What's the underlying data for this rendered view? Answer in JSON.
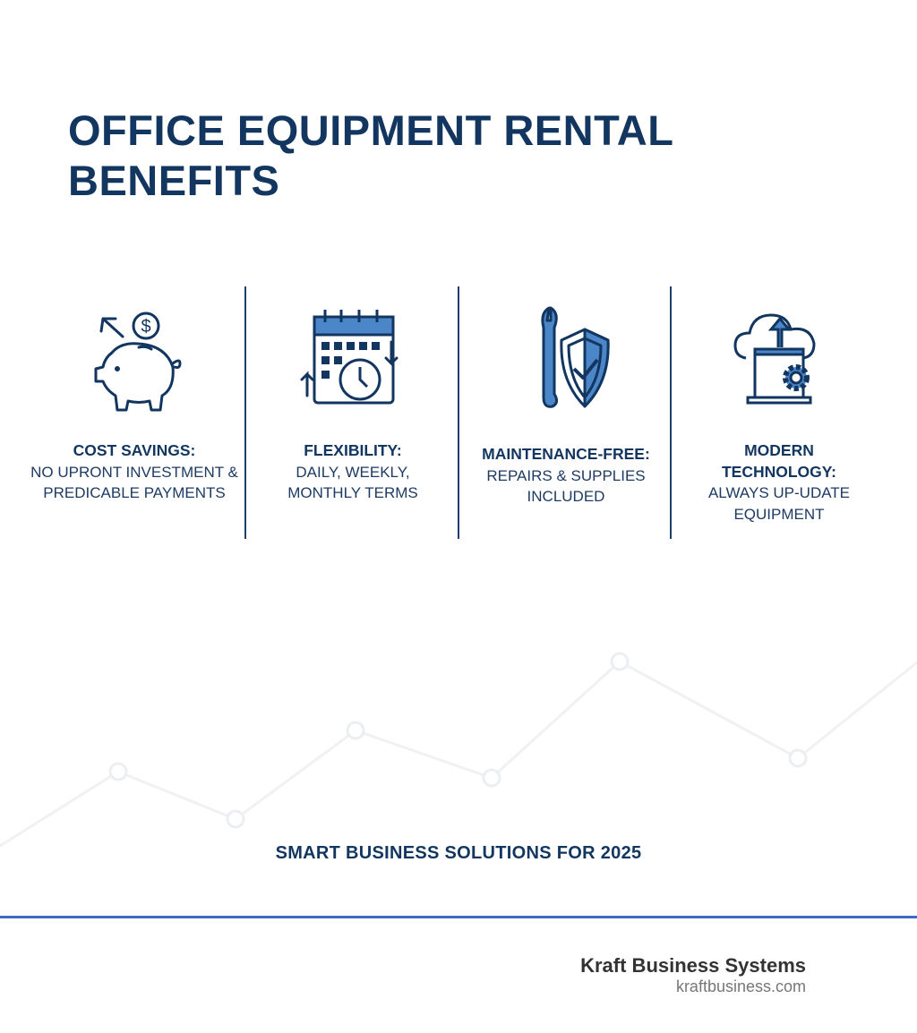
{
  "title": "OFFICE EQUIPMENT RENTAL BENEFITS",
  "benefits": [
    {
      "heading": "COST SAVINGS:",
      "text": "NO UPRONT INVESTMENT & PREDICABLE PAYMENTS",
      "icon": "piggy-bank-icon"
    },
    {
      "heading": "FLEXIBILITY:",
      "text": "DAILY, WEEKLY, MONTHLY TERMS",
      "icon": "calendar-clock-icon"
    },
    {
      "heading": "MAINTENANCE-FREE:",
      "text": "REPAIRS & SUPPLIES INCLUDED",
      "icon": "wrench-shield-icon"
    },
    {
      "heading": "MODERN TECHNOLOGY:",
      "text": "ALWAYS UP-UDATE EQUIPMENT",
      "icon": "cloud-laptop-gear-icon"
    }
  ],
  "tagline": "SMART BUSINESS SOLUTIONS FOR 2025",
  "footer": {
    "company": "Kraft Business Systems",
    "website": "kraftbusiness.com"
  },
  "colors": {
    "navy": "#12365f",
    "accent": "#4a86c8",
    "rule": "#3a6bbf"
  }
}
